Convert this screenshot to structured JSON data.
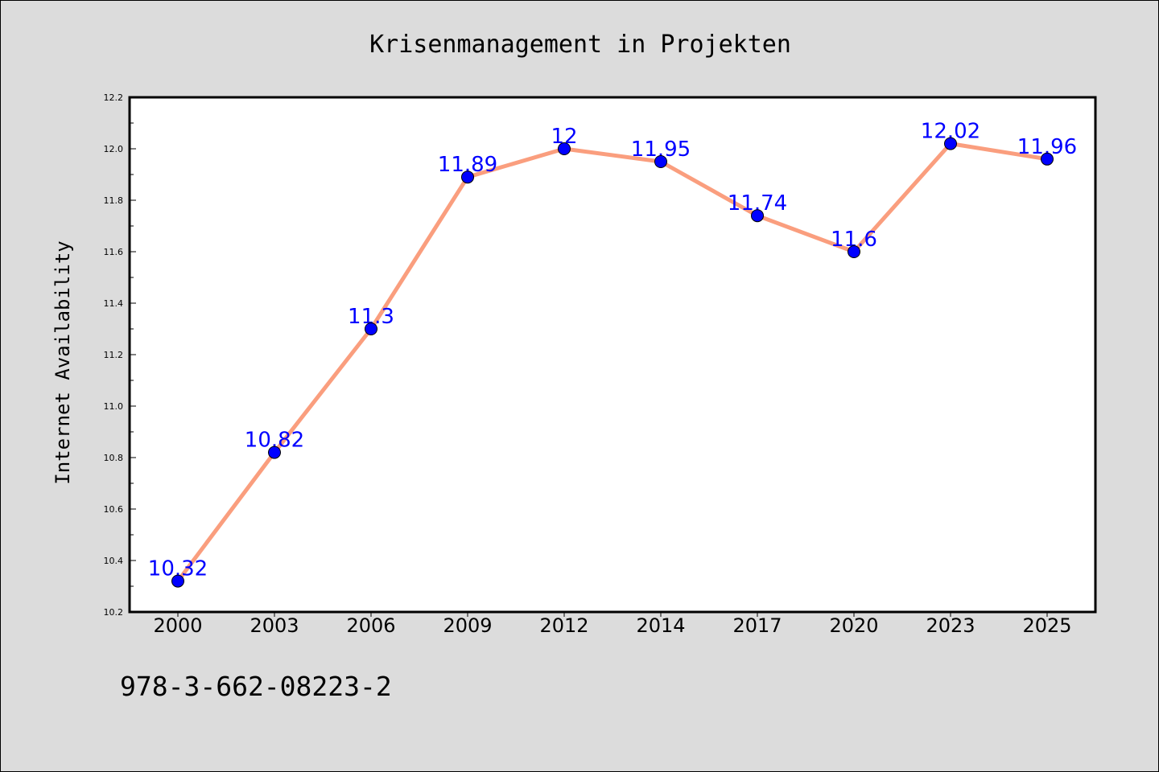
{
  "chart_data": {
    "type": "line",
    "title": "Krisenmanagement in Projekten",
    "xlabel": "",
    "ylabel": "Internet Availability",
    "categories": [
      "2000",
      "2003",
      "2006",
      "2009",
      "2012",
      "2014",
      "2017",
      "2020",
      "2023",
      "2025"
    ],
    "series": [
      {
        "values": [
          10.32,
          10.82,
          11.3,
          11.89,
          12,
          11.95,
          11.74,
          11.6,
          12.02,
          11.96
        ],
        "labels": [
          "10.32",
          "10.82",
          "11.3",
          "11.89",
          "12",
          "11.95",
          "11.74",
          "11.6",
          "12.02",
          "11.96"
        ]
      }
    ],
    "ylim": [
      10.2,
      12.2
    ],
    "yticks": [
      "10.2",
      "10.4",
      "10.6",
      "10.8",
      "11.0",
      "11.2",
      "11.4",
      "11.6",
      "11.8",
      "12.0",
      "12.2"
    ],
    "grid": false,
    "colors": {
      "line": "#fa9e7e",
      "marker": "#0000ff",
      "label": "#0000ff",
      "background": "#dcdcdc",
      "plot_background": "#ffffff"
    }
  },
  "footer": {
    "isbn": "978-3-662-08223-2"
  }
}
